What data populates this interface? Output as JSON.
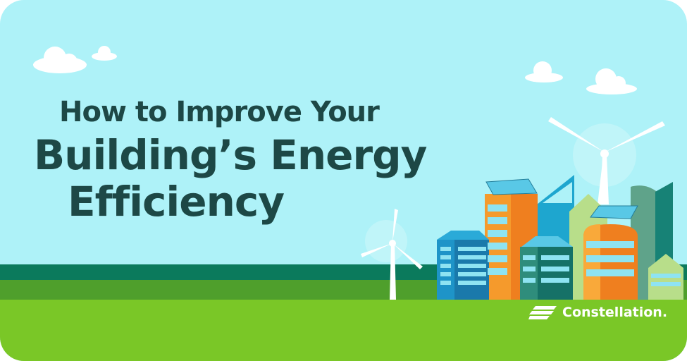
{
  "headline": {
    "line1": "How to Improve Your",
    "line2": "Building’s Energy",
    "line3": "Efficiency"
  },
  "brand": {
    "name": "Constellation.",
    "icon": "constellation-logo-icon"
  },
  "colors": {
    "sky": "#aef2f8",
    "title": "#1d4846",
    "grass": "#7ac727",
    "dark_green": "#0b7a5c"
  }
}
